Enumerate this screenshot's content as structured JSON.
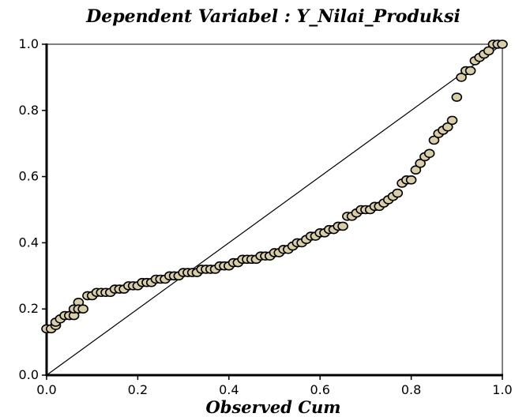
{
  "chart_data": {
    "type": "scatter",
    "title": "Dependent Variabel : Y_Nilai_Produksi",
    "xlabel": "Observed Cum",
    "ylabel": "",
    "xlim": [
      0,
      1
    ],
    "ylim": [
      0,
      1
    ],
    "x_ticks": [
      "0.0",
      "0.2",
      "0.4",
      "0.6",
      "0.8",
      "1.0"
    ],
    "y_ticks": [
      "0.0",
      "0.2",
      "0.4",
      "0.6",
      "0.8",
      "1.0"
    ],
    "reference_line": [
      [
        0,
        0
      ],
      [
        1,
        1
      ]
    ],
    "grid": false,
    "legend": "none",
    "marker_fill": "#d8cfa8",
    "marker_stroke": "#000000",
    "points": [
      [
        0.0,
        0.14
      ],
      [
        0.01,
        0.14
      ],
      [
        0.02,
        0.15
      ],
      [
        0.02,
        0.16
      ],
      [
        0.03,
        0.17
      ],
      [
        0.04,
        0.18
      ],
      [
        0.05,
        0.18
      ],
      [
        0.06,
        0.18
      ],
      [
        0.06,
        0.2
      ],
      [
        0.07,
        0.22
      ],
      [
        0.07,
        0.2
      ],
      [
        0.08,
        0.2
      ],
      [
        0.09,
        0.24
      ],
      [
        0.1,
        0.24
      ],
      [
        0.11,
        0.25
      ],
      [
        0.12,
        0.25
      ],
      [
        0.13,
        0.25
      ],
      [
        0.14,
        0.25
      ],
      [
        0.15,
        0.26
      ],
      [
        0.16,
        0.26
      ],
      [
        0.17,
        0.26
      ],
      [
        0.18,
        0.27
      ],
      [
        0.19,
        0.27
      ],
      [
        0.2,
        0.27
      ],
      [
        0.21,
        0.28
      ],
      [
        0.22,
        0.28
      ],
      [
        0.23,
        0.28
      ],
      [
        0.24,
        0.29
      ],
      [
        0.25,
        0.29
      ],
      [
        0.26,
        0.29
      ],
      [
        0.27,
        0.3
      ],
      [
        0.28,
        0.3
      ],
      [
        0.29,
        0.3
      ],
      [
        0.3,
        0.31
      ],
      [
        0.31,
        0.31
      ],
      [
        0.32,
        0.31
      ],
      [
        0.33,
        0.31
      ],
      [
        0.34,
        0.32
      ],
      [
        0.35,
        0.32
      ],
      [
        0.36,
        0.32
      ],
      [
        0.37,
        0.32
      ],
      [
        0.38,
        0.33
      ],
      [
        0.39,
        0.33
      ],
      [
        0.4,
        0.33
      ],
      [
        0.41,
        0.34
      ],
      [
        0.42,
        0.34
      ],
      [
        0.43,
        0.35
      ],
      [
        0.44,
        0.35
      ],
      [
        0.45,
        0.35
      ],
      [
        0.46,
        0.35
      ],
      [
        0.47,
        0.36
      ],
      [
        0.48,
        0.36
      ],
      [
        0.49,
        0.36
      ],
      [
        0.5,
        0.37
      ],
      [
        0.51,
        0.37
      ],
      [
        0.52,
        0.38
      ],
      [
        0.53,
        0.38
      ],
      [
        0.54,
        0.39
      ],
      [
        0.55,
        0.4
      ],
      [
        0.56,
        0.4
      ],
      [
        0.57,
        0.41
      ],
      [
        0.58,
        0.42
      ],
      [
        0.59,
        0.42
      ],
      [
        0.6,
        0.43
      ],
      [
        0.61,
        0.43
      ],
      [
        0.62,
        0.44
      ],
      [
        0.63,
        0.44
      ],
      [
        0.64,
        0.45
      ],
      [
        0.65,
        0.45
      ],
      [
        0.66,
        0.48
      ],
      [
        0.67,
        0.48
      ],
      [
        0.68,
        0.49
      ],
      [
        0.69,
        0.5
      ],
      [
        0.7,
        0.5
      ],
      [
        0.71,
        0.5
      ],
      [
        0.72,
        0.51
      ],
      [
        0.73,
        0.51
      ],
      [
        0.74,
        0.52
      ],
      [
        0.75,
        0.53
      ],
      [
        0.76,
        0.54
      ],
      [
        0.77,
        0.55
      ],
      [
        0.78,
        0.58
      ],
      [
        0.79,
        0.59
      ],
      [
        0.8,
        0.59
      ],
      [
        0.81,
        0.62
      ],
      [
        0.82,
        0.64
      ],
      [
        0.83,
        0.66
      ],
      [
        0.84,
        0.67
      ],
      [
        0.85,
        0.71
      ],
      [
        0.86,
        0.73
      ],
      [
        0.87,
        0.74
      ],
      [
        0.88,
        0.75
      ],
      [
        0.89,
        0.77
      ],
      [
        0.9,
        0.84
      ],
      [
        0.91,
        0.9
      ],
      [
        0.92,
        0.92
      ],
      [
        0.93,
        0.92
      ],
      [
        0.94,
        0.95
      ],
      [
        0.95,
        0.96
      ],
      [
        0.96,
        0.97
      ],
      [
        0.97,
        0.98
      ],
      [
        0.98,
        1.0
      ],
      [
        0.99,
        1.0
      ],
      [
        1.0,
        1.0
      ]
    ]
  }
}
